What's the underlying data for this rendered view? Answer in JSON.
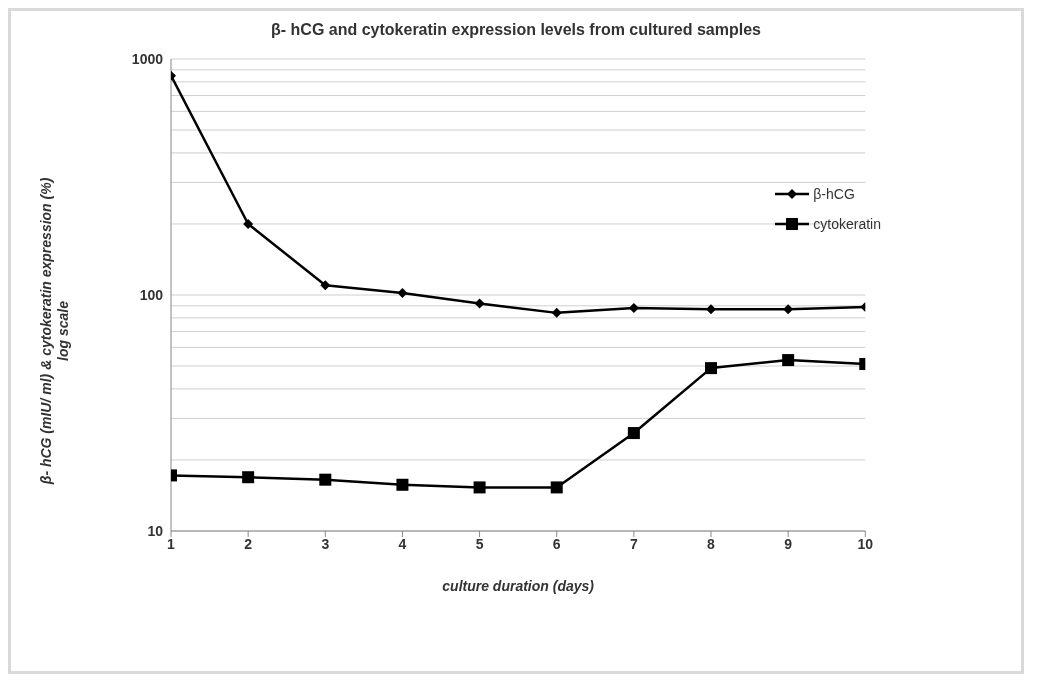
{
  "chart_data": {
    "type": "line",
    "title": "β- hCG and cytokeratin expression levels from cultured samples",
    "xlabel": "culture duration (days)",
    "ylabel": "β- hCG (mIU/ ml) & cytokeratin expression (%)\nlog scale",
    "x": [
      1,
      2,
      3,
      4,
      5,
      6,
      7,
      8,
      9,
      10
    ],
    "xlim": [
      1,
      10
    ],
    "xticks": [
      1,
      2,
      3,
      4,
      5,
      6,
      7,
      8,
      9,
      10
    ],
    "log": "y",
    "ylim": [
      10,
      1000
    ],
    "yticks": [
      10,
      {
        "value": 20,
        "label": null
      },
      {
        "value": 30,
        "label": null
      },
      {
        "value": 40,
        "label": null
      },
      {
        "value": 50,
        "label": null
      },
      {
        "value": 60,
        "label": null
      },
      {
        "value": 70,
        "label": null
      },
      {
        "value": 80,
        "label": null
      },
      {
        "value": 90,
        "label": null
      },
      100,
      {
        "value": 200,
        "label": null
      },
      {
        "value": 300,
        "label": null
      },
      {
        "value": 400,
        "label": null
      },
      {
        "value": 500,
        "label": null
      },
      {
        "value": 600,
        "label": null
      },
      {
        "value": 700,
        "label": null
      },
      {
        "value": 800,
        "label": null
      },
      {
        "value": 900,
        "label": null
      },
      1000
    ],
    "grid": "y",
    "legend": "top right",
    "line_style": "solid",
    "series": [
      {
        "name": "β-hCG",
        "color": "#000000",
        "marker": "diamond",
        "values": [
          850,
          200,
          110,
          102,
          92,
          84,
          88,
          87,
          87,
          89
        ]
      },
      {
        "name": "cytokeratin",
        "color": "#000000",
        "marker": "square",
        "values": [
          17.2,
          16.9,
          16.5,
          15.7,
          15.3,
          15.3,
          26,
          49,
          53,
          51
        ]
      }
    ]
  }
}
